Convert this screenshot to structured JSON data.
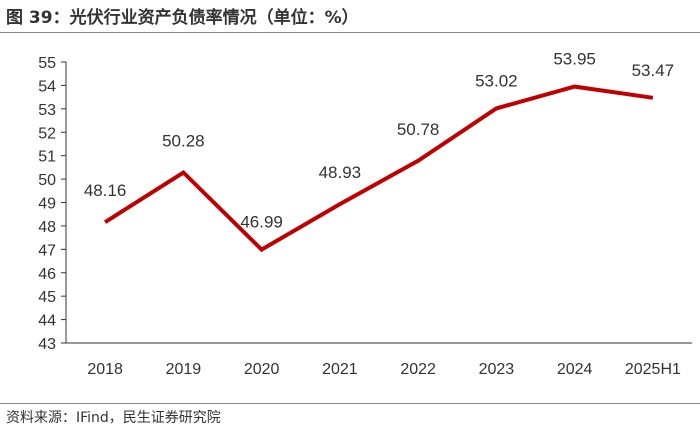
{
  "header": {
    "title": "图 39：光伏行业资产负债率情况（单位：%）"
  },
  "footer": {
    "source": "资料来源：IFind，民生证券研究院"
  },
  "colors": {
    "line": "#C00000",
    "axis": "#333333",
    "text": "#333333"
  },
  "chart_data": {
    "type": "line",
    "categories": [
      "2018",
      "2019",
      "2020",
      "2021",
      "2022",
      "2023",
      "2024",
      "2025H1"
    ],
    "series": [
      {
        "values": [
          48.16,
          50.28,
          46.99,
          48.93,
          50.78,
          53.02,
          53.95,
          53.47
        ]
      }
    ],
    "data_labels": [
      "48.16",
      "50.28",
      "46.99",
      "48.93",
      "50.78",
      "53.02",
      "53.95",
      "53.47"
    ],
    "ylim": [
      43,
      55
    ],
    "yticks": [
      43,
      44,
      45,
      46,
      47,
      48,
      49,
      50,
      51,
      52,
      53,
      54,
      55
    ],
    "grid": false,
    "legend": "none"
  }
}
